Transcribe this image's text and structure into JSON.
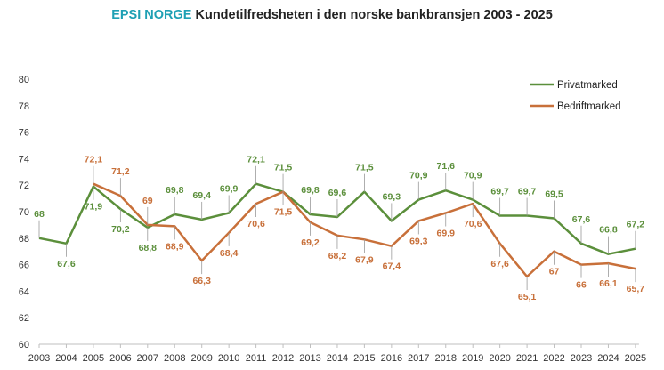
{
  "title": {
    "brand": "EPSI NORGE",
    "text": "Kundetilfredsheten i den norske bankbransjen 2003 - 2025"
  },
  "chart_data": {
    "type": "line",
    "x": [
      "2003",
      "2004",
      "2005",
      "2006",
      "2007",
      "2008",
      "2009",
      "2010",
      "2011",
      "2012",
      "2013",
      "2014",
      "2015",
      "2016",
      "2017",
      "2018",
      "2019",
      "2020",
      "2021",
      "2022",
      "2023",
      "2024",
      "2025"
    ],
    "ylim": [
      60,
      80
    ],
    "yticks": [
      60,
      62,
      64,
      66,
      68,
      70,
      72,
      74,
      76,
      78,
      80
    ],
    "grid": false,
    "legend_position": "top-right",
    "series": [
      {
        "name": "Privatmarked",
        "color": "#5b8f3b",
        "values": [
          68,
          67.6,
          71.9,
          70.2,
          68.8,
          69.8,
          69.4,
          69.9,
          72.1,
          71.5,
          69.8,
          69.6,
          71.5,
          69.3,
          70.9,
          71.6,
          70.9,
          69.7,
          69.7,
          69.5,
          67.6,
          66.8,
          67.2
        ],
        "labels": [
          "68",
          "67,6",
          "71,9",
          "70,2",
          "68,8",
          "69,8",
          "69,4",
          "69,9",
          "72,1",
          "71,5",
          "69,8",
          "69,6",
          "71,5",
          "69,3",
          "70,9",
          "71,6",
          "70,9",
          "69,7",
          "69,7",
          "69,5",
          "67,6",
          "66,8",
          "67,2"
        ]
      },
      {
        "name": "Bedriftmarked",
        "color": "#c8703a",
        "values": [
          null,
          null,
          72.1,
          71.2,
          69,
          68.9,
          66.3,
          68.4,
          70.6,
          71.5,
          69.2,
          68.2,
          67.9,
          67.4,
          69.3,
          69.9,
          70.6,
          67.6,
          65.1,
          67,
          66,
          66.1,
          65.7
        ],
        "labels": [
          null,
          null,
          "72,1",
          "71,2",
          "69",
          "68,9",
          "66,3",
          "68,4",
          "70,6",
          "71,5",
          "69,2",
          "68,2",
          "67,9",
          "67,4",
          "69,3",
          "69,9",
          "70,6",
          "67,6",
          "65,1",
          "67",
          "66",
          "66,1",
          "65,7"
        ]
      }
    ]
  }
}
